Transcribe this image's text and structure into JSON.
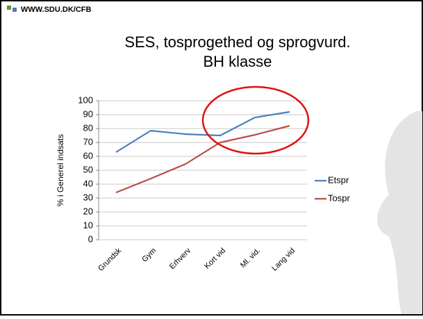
{
  "logo": "WWW.SDU.DK/CFB",
  "chart_data": {
    "type": "line",
    "title": "SES, tosprogethed og sprogvurd.",
    "subtitle": "BH klasse",
    "y_label": "% i Generel indsats",
    "categories": [
      "Grundsk",
      "Gym",
      "Erhverv",
      "Kort vid",
      "Ml. vid.",
      "Lang vid"
    ],
    "series": [
      {
        "name": "Etspr",
        "color": "#4a7ebb",
        "values": [
          63,
          78.5,
          76,
          75,
          88,
          92
        ]
      },
      {
        "name": "Tospr",
        "color": "#be4b48",
        "values": [
          34,
          44,
          54.5,
          70,
          75.5,
          82
        ]
      }
    ],
    "ylim": [
      0,
      100
    ],
    "yticks": [
      0,
      10,
      20,
      30,
      40,
      50,
      60,
      70,
      80,
      90,
      100
    ],
    "grid": true,
    "legend": "right"
  }
}
